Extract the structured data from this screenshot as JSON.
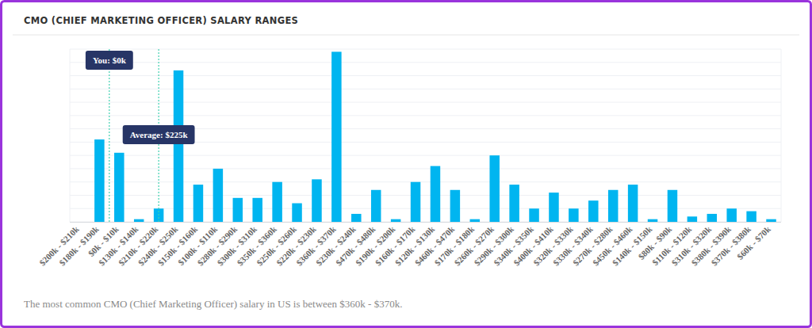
{
  "chart_data": {
    "type": "bar",
    "title": "CMO (CHIEF MARKETING OFFICER) SALARY RANGES",
    "caption": "The most common CMO (Chief Marketing Officer) salary in US is between $360k - $370k.",
    "categories": [
      "$200k - $210k",
      "$180k - $190k",
      "$0k - $10k",
      "$130k - $140k",
      "$210k - $220k",
      "$240k - $250k",
      "$150k - $160k",
      "$100k - $110k",
      "$280k - $290k",
      "$300k - $310k",
      "$350k - $360k",
      "$250k - $260k",
      "$220k - $230k",
      "$360k - $370k",
      "$230k - $240k",
      "$470k - $480k",
      "$190k - $200k",
      "$160k - $170k",
      "$120k - $130k",
      "$460k - $470k",
      "$170k - $180k",
      "$260k - $270k",
      "$290k - $300k",
      "$340k - $350k",
      "$400k - $410k",
      "$320k - $330k",
      "$330k - $340k",
      "$270k - $280k",
      "$450k - $460k",
      "$140k - $150k",
      "$80k - $90k",
      "$110k - $120k",
      "$310k - $320k",
      "$380k - $390k",
      "$370k - $380k",
      "$60k - $70k"
    ],
    "values": [
      0,
      31,
      26,
      1,
      5,
      57,
      14,
      20,
      9,
      9,
      15,
      7,
      16,
      64,
      3,
      12,
      1,
      15,
      21,
      12,
      1,
      25,
      14,
      5,
      11,
      5,
      8,
      12,
      14,
      1,
      12,
      2,
      3,
      5,
      4,
      1
    ],
    "color": "#00b5f0",
    "ylim": [
      0,
      65
    ],
    "yticks": [
      0,
      5,
      10,
      15,
      20,
      25,
      30,
      35,
      40,
      45,
      50,
      55,
      60,
      65
    ],
    "grid": true,
    "tick_labels": "x",
    "annotations": [
      {
        "label": "You: $0k",
        "x": 1.5
      },
      {
        "label": "Average: $225k",
        "x": 4
      }
    ]
  }
}
